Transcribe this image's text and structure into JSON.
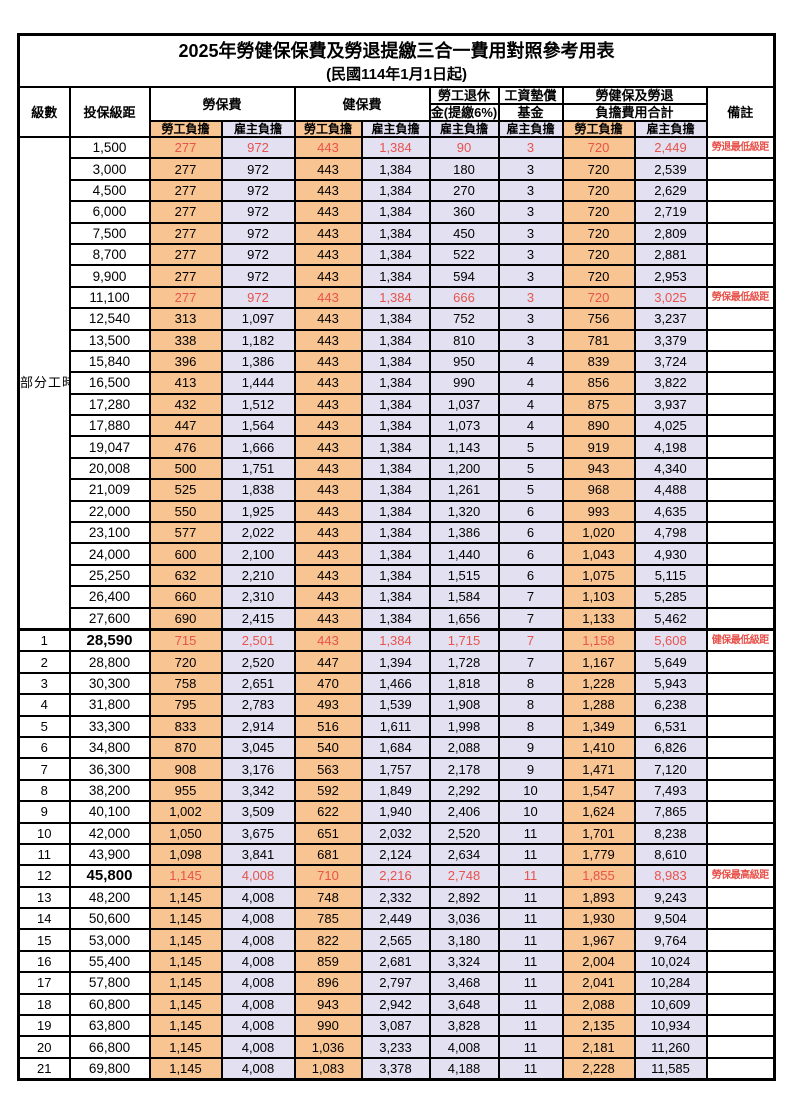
{
  "title": "2025年勞健保保費及勞退提繳三合一費用對照參考用表",
  "subtitle": "(民國114年1月1日起)",
  "colors": {
    "employee_bg": "#F8C491",
    "employer_bg": "#E2E0F1",
    "highlight_red": "#E8534C",
    "border": "#000000"
  },
  "columns": {
    "level": "級數",
    "salary_bracket": "投保級距",
    "labor_insurance": "勞保費",
    "health_insurance": "健保費",
    "pension_line1": "勞工退休",
    "pension_line2": "金(提繳6%)",
    "wage_fund_line1": "工資墊償",
    "wage_fund_line2": "基金",
    "total_line1": "勞健保及勞退",
    "total_line2": "負擔費用合計",
    "remark": "備註",
    "burden_employee": "勞工負擔",
    "burden_employer": "雇主負擔"
  },
  "table": {
    "part_time_label": "部分工時",
    "part_time_span": 23,
    "group_boundary_index": 23,
    "value_column_keys": [
      "labor_ins_employee",
      "labor_ins_employer",
      "health_ins_employee",
      "health_ins_employer",
      "pension_employer",
      "wage_fund_employer",
      "total_employee",
      "total_employer"
    ],
    "rows": [
      {
        "lv": "",
        "salary": "1,500",
        "v": [
          "277",
          "972",
          "443",
          "1,384",
          "90",
          "3",
          "720",
          "2,449"
        ],
        "remark": "勞退最低級距",
        "red": true,
        "bold": false
      },
      {
        "lv": "",
        "salary": "3,000",
        "v": [
          "277",
          "972",
          "443",
          "1,384",
          "180",
          "3",
          "720",
          "2,539"
        ],
        "remark": "",
        "red": false,
        "bold": false
      },
      {
        "lv": "",
        "salary": "4,500",
        "v": [
          "277",
          "972",
          "443",
          "1,384",
          "270",
          "3",
          "720",
          "2,629"
        ],
        "remark": "",
        "red": false,
        "bold": false
      },
      {
        "lv": "",
        "salary": "6,000",
        "v": [
          "277",
          "972",
          "443",
          "1,384",
          "360",
          "3",
          "720",
          "2,719"
        ],
        "remark": "",
        "red": false,
        "bold": false
      },
      {
        "lv": "",
        "salary": "7,500",
        "v": [
          "277",
          "972",
          "443",
          "1,384",
          "450",
          "3",
          "720",
          "2,809"
        ],
        "remark": "",
        "red": false,
        "bold": false
      },
      {
        "lv": "",
        "salary": "8,700",
        "v": [
          "277",
          "972",
          "443",
          "1,384",
          "522",
          "3",
          "720",
          "2,881"
        ],
        "remark": "",
        "red": false,
        "bold": false
      },
      {
        "lv": "",
        "salary": "9,900",
        "v": [
          "277",
          "972",
          "443",
          "1,384",
          "594",
          "3",
          "720",
          "2,953"
        ],
        "remark": "",
        "red": false,
        "bold": false
      },
      {
        "lv": "",
        "salary": "11,100",
        "v": [
          "277",
          "972",
          "443",
          "1,384",
          "666",
          "3",
          "720",
          "3,025"
        ],
        "remark": "勞保最低級距",
        "red": true,
        "bold": false
      },
      {
        "lv": "",
        "salary": "12,540",
        "v": [
          "313",
          "1,097",
          "443",
          "1,384",
          "752",
          "3",
          "756",
          "3,237"
        ],
        "remark": "",
        "red": false,
        "bold": false
      },
      {
        "lv": "",
        "salary": "13,500",
        "v": [
          "338",
          "1,182",
          "443",
          "1,384",
          "810",
          "3",
          "781",
          "3,379"
        ],
        "remark": "",
        "red": false,
        "bold": false
      },
      {
        "lv": "",
        "salary": "15,840",
        "v": [
          "396",
          "1,386",
          "443",
          "1,384",
          "950",
          "4",
          "839",
          "3,724"
        ],
        "remark": "",
        "red": false,
        "bold": false
      },
      {
        "lv": "",
        "salary": "16,500",
        "v": [
          "413",
          "1,444",
          "443",
          "1,384",
          "990",
          "4",
          "856",
          "3,822"
        ],
        "remark": "",
        "red": false,
        "bold": false
      },
      {
        "lv": "",
        "salary": "17,280",
        "v": [
          "432",
          "1,512",
          "443",
          "1,384",
          "1,037",
          "4",
          "875",
          "3,937"
        ],
        "remark": "",
        "red": false,
        "bold": false
      },
      {
        "lv": "",
        "salary": "17,880",
        "v": [
          "447",
          "1,564",
          "443",
          "1,384",
          "1,073",
          "4",
          "890",
          "4,025"
        ],
        "remark": "",
        "red": false,
        "bold": false
      },
      {
        "lv": "",
        "salary": "19,047",
        "v": [
          "476",
          "1,666",
          "443",
          "1,384",
          "1,143",
          "5",
          "919",
          "4,198"
        ],
        "remark": "",
        "red": false,
        "bold": false
      },
      {
        "lv": "",
        "salary": "20,008",
        "v": [
          "500",
          "1,751",
          "443",
          "1,384",
          "1,200",
          "5",
          "943",
          "4,340"
        ],
        "remark": "",
        "red": false,
        "bold": false
      },
      {
        "lv": "",
        "salary": "21,009",
        "v": [
          "525",
          "1,838",
          "443",
          "1,384",
          "1,261",
          "5",
          "968",
          "4,488"
        ],
        "remark": "",
        "red": false,
        "bold": false
      },
      {
        "lv": "",
        "salary": "22,000",
        "v": [
          "550",
          "1,925",
          "443",
          "1,384",
          "1,320",
          "6",
          "993",
          "4,635"
        ],
        "remark": "",
        "red": false,
        "bold": false
      },
      {
        "lv": "",
        "salary": "23,100",
        "v": [
          "577",
          "2,022",
          "443",
          "1,384",
          "1,386",
          "6",
          "1,020",
          "4,798"
        ],
        "remark": "",
        "red": false,
        "bold": false
      },
      {
        "lv": "",
        "salary": "24,000",
        "v": [
          "600",
          "2,100",
          "443",
          "1,384",
          "1,440",
          "6",
          "1,043",
          "4,930"
        ],
        "remark": "",
        "red": false,
        "bold": false
      },
      {
        "lv": "",
        "salary": "25,250",
        "v": [
          "632",
          "2,210",
          "443",
          "1,384",
          "1,515",
          "6",
          "1,075",
          "5,115"
        ],
        "remark": "",
        "red": false,
        "bold": false
      },
      {
        "lv": "",
        "salary": "26,400",
        "v": [
          "660",
          "2,310",
          "443",
          "1,384",
          "1,584",
          "7",
          "1,103",
          "5,285"
        ],
        "remark": "",
        "red": false,
        "bold": false
      },
      {
        "lv": "",
        "salary": "27,600",
        "v": [
          "690",
          "2,415",
          "443",
          "1,384",
          "1,656",
          "7",
          "1,133",
          "5,462"
        ],
        "remark": "",
        "red": false,
        "bold": false
      },
      {
        "lv": "1",
        "salary": "28,590",
        "v": [
          "715",
          "2,501",
          "443",
          "1,384",
          "1,715",
          "7",
          "1,158",
          "5,608"
        ],
        "remark": "健保最低級距",
        "red": true,
        "bold": true
      },
      {
        "lv": "2",
        "salary": "28,800",
        "v": [
          "720",
          "2,520",
          "447",
          "1,394",
          "1,728",
          "7",
          "1,167",
          "5,649"
        ],
        "remark": "",
        "red": false,
        "bold": false
      },
      {
        "lv": "3",
        "salary": "30,300",
        "v": [
          "758",
          "2,651",
          "470",
          "1,466",
          "1,818",
          "8",
          "1,228",
          "5,943"
        ],
        "remark": "",
        "red": false,
        "bold": false
      },
      {
        "lv": "4",
        "salary": "31,800",
        "v": [
          "795",
          "2,783",
          "493",
          "1,539",
          "1,908",
          "8",
          "1,288",
          "6,238"
        ],
        "remark": "",
        "red": false,
        "bold": false
      },
      {
        "lv": "5",
        "salary": "33,300",
        "v": [
          "833",
          "2,914",
          "516",
          "1,611",
          "1,998",
          "8",
          "1,349",
          "6,531"
        ],
        "remark": "",
        "red": false,
        "bold": false
      },
      {
        "lv": "6",
        "salary": "34,800",
        "v": [
          "870",
          "3,045",
          "540",
          "1,684",
          "2,088",
          "9",
          "1,410",
          "6,826"
        ],
        "remark": "",
        "red": false,
        "bold": false
      },
      {
        "lv": "7",
        "salary": "36,300",
        "v": [
          "908",
          "3,176",
          "563",
          "1,757",
          "2,178",
          "9",
          "1,471",
          "7,120"
        ],
        "remark": "",
        "red": false,
        "bold": false
      },
      {
        "lv": "8",
        "salary": "38,200",
        "v": [
          "955",
          "3,342",
          "592",
          "1,849",
          "2,292",
          "10",
          "1,547",
          "7,493"
        ],
        "remark": "",
        "red": false,
        "bold": false
      },
      {
        "lv": "9",
        "salary": "40,100",
        "v": [
          "1,002",
          "3,509",
          "622",
          "1,940",
          "2,406",
          "10",
          "1,624",
          "7,865"
        ],
        "remark": "",
        "red": false,
        "bold": false
      },
      {
        "lv": "10",
        "salary": "42,000",
        "v": [
          "1,050",
          "3,675",
          "651",
          "2,032",
          "2,520",
          "11",
          "1,701",
          "8,238"
        ],
        "remark": "",
        "red": false,
        "bold": false
      },
      {
        "lv": "11",
        "salary": "43,900",
        "v": [
          "1,098",
          "3,841",
          "681",
          "2,124",
          "2,634",
          "11",
          "1,779",
          "8,610"
        ],
        "remark": "",
        "red": false,
        "bold": false
      },
      {
        "lv": "12",
        "salary": "45,800",
        "v": [
          "1,145",
          "4,008",
          "710",
          "2,216",
          "2,748",
          "11",
          "1,855",
          "8,983"
        ],
        "remark": "勞保最高級距",
        "red": true,
        "bold": true
      },
      {
        "lv": "13",
        "salary": "48,200",
        "v": [
          "1,145",
          "4,008",
          "748",
          "2,332",
          "2,892",
          "11",
          "1,893",
          "9,243"
        ],
        "remark": "",
        "red": false,
        "bold": false
      },
      {
        "lv": "14",
        "salary": "50,600",
        "v": [
          "1,145",
          "4,008",
          "785",
          "2,449",
          "3,036",
          "11",
          "1,930",
          "9,504"
        ],
        "remark": "",
        "red": false,
        "bold": false
      },
      {
        "lv": "15",
        "salary": "53,000",
        "v": [
          "1,145",
          "4,008",
          "822",
          "2,565",
          "3,180",
          "11",
          "1,967",
          "9,764"
        ],
        "remark": "",
        "red": false,
        "bold": false
      },
      {
        "lv": "16",
        "salary": "55,400",
        "v": [
          "1,145",
          "4,008",
          "859",
          "2,681",
          "3,324",
          "11",
          "2,004",
          "10,024"
        ],
        "remark": "",
        "red": false,
        "bold": false
      },
      {
        "lv": "17",
        "salary": "57,800",
        "v": [
          "1,145",
          "4,008",
          "896",
          "2,797",
          "3,468",
          "11",
          "2,041",
          "10,284"
        ],
        "remark": "",
        "red": false,
        "bold": false
      },
      {
        "lv": "18",
        "salary": "60,800",
        "v": [
          "1,145",
          "4,008",
          "943",
          "2,942",
          "3,648",
          "11",
          "2,088",
          "10,609"
        ],
        "remark": "",
        "red": false,
        "bold": false
      },
      {
        "lv": "19",
        "salary": "63,800",
        "v": [
          "1,145",
          "4,008",
          "990",
          "3,087",
          "3,828",
          "11",
          "2,135",
          "10,934"
        ],
        "remark": "",
        "red": false,
        "bold": false
      },
      {
        "lv": "20",
        "salary": "66,800",
        "v": [
          "1,145",
          "4,008",
          "1,036",
          "3,233",
          "4,008",
          "11",
          "2,181",
          "11,260"
        ],
        "remark": "",
        "red": false,
        "bold": false
      },
      {
        "lv": "21",
        "salary": "69,800",
        "v": [
          "1,145",
          "4,008",
          "1,083",
          "3,378",
          "4,188",
          "11",
          "2,228",
          "11,585"
        ],
        "remark": "",
        "red": false,
        "bold": false
      }
    ]
  }
}
